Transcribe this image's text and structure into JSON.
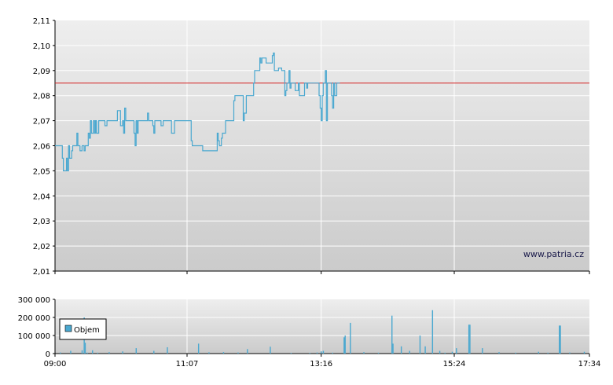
{
  "watermark": "www.patria.cz",
  "colors": {
    "price_line": "#4aa8d0",
    "reference_line": "#d42020",
    "volume_bars": "#4aa8d0",
    "grid": "#ffffff",
    "plot_bg_top": "#eeeeee",
    "plot_bg_bottom": "#cbcbcb"
  },
  "chart_data": [
    {
      "type": "line",
      "name": "price",
      "x_labels": [
        "09:00",
        "11:07",
        "13:16",
        "15:24",
        "17:34"
      ],
      "x_range": [
        "09:00",
        "17:34"
      ],
      "ylim": [
        2.01,
        2.11
      ],
      "yticks": [
        "2,11",
        "2,10",
        "2,09",
        "2,08",
        "2,07",
        "2,06",
        "2,05",
        "2,04",
        "2,03",
        "2,02",
        "2,01"
      ],
      "grid": true,
      "reference_line": 2.085,
      "series": [
        {
          "values": [
            [
              "09:00",
              2.06
            ],
            [
              "09:05",
              2.06
            ],
            [
              "09:07",
              2.055
            ],
            [
              "09:08",
              2.05
            ],
            [
              "09:09",
              2.05
            ],
            [
              "09:11",
              2.055
            ],
            [
              "09:12",
              2.05
            ],
            [
              "09:13",
              2.06
            ],
            [
              "09:14",
              2.055
            ],
            [
              "09:16",
              2.058
            ],
            [
              "09:17",
              2.06
            ],
            [
              "09:20",
              2.06
            ],
            [
              "09:21",
              2.065
            ],
            [
              "09:22",
              2.06
            ],
            [
              "09:24",
              2.058
            ],
            [
              "09:26",
              2.06
            ],
            [
              "09:28",
              2.058
            ],
            [
              "09:29",
              2.06
            ],
            [
              "09:31",
              2.06
            ],
            [
              "09:32",
              2.065
            ],
            [
              "09:33",
              2.063
            ],
            [
              "09:34",
              2.07
            ],
            [
              "09:35",
              2.065
            ],
            [
              "09:37",
              2.07
            ],
            [
              "09:38",
              2.065
            ],
            [
              "09:39",
              2.07
            ],
            [
              "09:40",
              2.065
            ],
            [
              "09:42",
              2.07
            ],
            [
              "09:47",
              2.07
            ],
            [
              "09:48",
              2.068
            ],
            [
              "09:50",
              2.07
            ],
            [
              "09:59",
              2.07
            ],
            [
              "10:00",
              2.074
            ],
            [
              "10:03",
              2.068
            ],
            [
              "10:05",
              2.07
            ],
            [
              "10:06",
              2.065
            ],
            [
              "10:07",
              2.075
            ],
            [
              "10:08",
              2.07
            ],
            [
              "10:15",
              2.07
            ],
            [
              "10:16",
              2.065
            ],
            [
              "10:17",
              2.06
            ],
            [
              "10:18",
              2.07
            ],
            [
              "10:19",
              2.065
            ],
            [
              "10:20",
              2.07
            ],
            [
              "10:28",
              2.07
            ],
            [
              "10:29",
              2.073
            ],
            [
              "10:30",
              2.07
            ],
            [
              "10:33",
              2.07
            ],
            [
              "10:34",
              2.068
            ],
            [
              "10:35",
              2.065
            ],
            [
              "10:36",
              2.07
            ],
            [
              "10:40",
              2.07
            ],
            [
              "10:42",
              2.068
            ],
            [
              "10:44",
              2.07
            ],
            [
              "10:51",
              2.07
            ],
            [
              "10:52",
              2.065
            ],
            [
              "10:54",
              2.065
            ],
            [
              "10:55",
              2.07
            ],
            [
              "10:57",
              2.07
            ],
            [
              "11:10",
              2.07
            ],
            [
              "11:11",
              2.062
            ],
            [
              "11:12",
              2.06
            ],
            [
              "11:20",
              2.06
            ],
            [
              "11:21",
              2.06
            ],
            [
              "11:22",
              2.058
            ],
            [
              "11:28",
              2.058
            ],
            [
              "11:35",
              2.058
            ],
            [
              "11:36",
              2.065
            ],
            [
              "11:37",
              2.062
            ],
            [
              "11:38",
              2.06
            ],
            [
              "11:40",
              2.063
            ],
            [
              "11:41",
              2.065
            ],
            [
              "11:43",
              2.065
            ],
            [
              "11:44",
              2.07
            ],
            [
              "11:51",
              2.07
            ],
            [
              "11:52",
              2.078
            ],
            [
              "11:53",
              2.08
            ],
            [
              "11:59",
              2.08
            ],
            [
              "12:01",
              2.07
            ],
            [
              "12:02",
              2.073
            ],
            [
              "12:03",
              2.073
            ],
            [
              "12:04",
              2.08
            ],
            [
              "12:10",
              2.08
            ],
            [
              "12:11",
              2.085
            ],
            [
              "12:12",
              2.09
            ],
            [
              "12:17",
              2.095
            ],
            [
              "12:18",
              2.093
            ],
            [
              "12:19",
              2.095
            ],
            [
              "12:21",
              2.095
            ],
            [
              "12:23",
              2.093
            ],
            [
              "12:28",
              2.093
            ],
            [
              "12:29",
              2.096
            ],
            [
              "12:30",
              2.097
            ],
            [
              "12:31",
              2.09
            ],
            [
              "12:34",
              2.09
            ],
            [
              "12:35",
              2.091
            ],
            [
              "12:38",
              2.09
            ],
            [
              "12:40",
              2.09
            ],
            [
              "12:41",
              2.08
            ],
            [
              "12:42",
              2.082
            ],
            [
              "12:43",
              2.085
            ],
            [
              "12:44",
              2.085
            ],
            [
              "12:45",
              2.09
            ],
            [
              "12:46",
              2.083
            ],
            [
              "12:47",
              2.085
            ],
            [
              "12:50",
              2.085
            ],
            [
              "12:51",
              2.082
            ],
            [
              "12:54",
              2.085
            ],
            [
              "12:55",
              2.08
            ],
            [
              "12:59",
              2.08
            ],
            [
              "13:00",
              2.085
            ],
            [
              "13:02",
              2.083
            ],
            [
              "13:03",
              2.085
            ],
            [
              "13:10",
              2.085
            ],
            [
              "13:12",
              2.085
            ],
            [
              "13:14",
              2.08
            ],
            [
              "13:15",
              2.075
            ],
            [
              "13:16",
              2.07
            ],
            [
              "13:17",
              2.08
            ],
            [
              "13:18",
              2.085
            ],
            [
              "13:20",
              2.09
            ],
            [
              "13:21",
              2.07
            ],
            [
              "13:22",
              2.085
            ],
            [
              "13:25",
              2.085
            ],
            [
              "13:26",
              2.08
            ],
            [
              "13:27",
              2.075
            ],
            [
              "13:28",
              2.085
            ],
            [
              "13:29",
              2.08
            ],
            [
              "13:31",
              2.085
            ],
            [
              "13:34",
              2.085
            ]
          ]
        }
      ]
    },
    {
      "type": "bar",
      "name": "volume",
      "legend": "Objem",
      "legend_position": "left",
      "x_labels": [
        "09:00",
        "11:07",
        "13:16",
        "15:24",
        "17:34"
      ],
      "ylim": [
        0,
        300000
      ],
      "yticks": [
        "300 000",
        "200 000",
        "100 000",
        "0"
      ],
      "grid": true,
      "values": [
        [
          "09:05",
          6000
        ],
        [
          "09:15",
          15000
        ],
        [
          "09:26",
          18000
        ],
        [
          "09:28",
          200000
        ],
        [
          "09:29",
          60000
        ],
        [
          "09:31",
          5000
        ],
        [
          "09:36",
          18000
        ],
        [
          "09:41",
          5000
        ],
        [
          "09:52",
          8000
        ],
        [
          "10:05",
          12000
        ],
        [
          "10:18",
          30000
        ],
        [
          "10:35",
          15000
        ],
        [
          "10:48",
          35000
        ],
        [
          "11:18",
          55000
        ],
        [
          "11:28",
          7000
        ],
        [
          "11:42",
          8000
        ],
        [
          "11:56",
          6000
        ],
        [
          "12:05",
          25000
        ],
        [
          "12:27",
          38000
        ],
        [
          "12:47",
          4000
        ],
        [
          "13:05",
          4000
        ],
        [
          "13:12",
          6000
        ],
        [
          "13:16",
          12000
        ],
        [
          "13:18",
          15000
        ],
        [
          "13:27",
          5000
        ],
        [
          "13:38",
          90000
        ],
        [
          "13:39",
          100000
        ],
        [
          "13:44",
          170000
        ],
        [
          "13:57",
          8000
        ],
        [
          "14:11",
          5000
        ],
        [
          "14:24",
          210000
        ],
        [
          "14:25",
          55000
        ],
        [
          "14:33",
          40000
        ],
        [
          "14:41",
          15000
        ],
        [
          "14:51",
          100000
        ],
        [
          "14:56",
          40000
        ],
        [
          "15:03",
          240000
        ],
        [
          "15:10",
          15000
        ],
        [
          "15:15",
          5000
        ],
        [
          "15:22",
          10000
        ],
        [
          "15:26",
          30000
        ],
        [
          "15:38",
          160000
        ],
        [
          "15:39",
          160000
        ],
        [
          "15:51",
          30000
        ],
        [
          "16:07",
          8000
        ],
        [
          "16:23",
          5000
        ],
        [
          "16:45",
          10000
        ],
        [
          "16:54",
          5000
        ],
        [
          "17:05",
          155000
        ],
        [
          "17:06",
          155000
        ],
        [
          "17:15",
          6000
        ],
        [
          "17:29",
          10000
        ]
      ]
    }
  ]
}
